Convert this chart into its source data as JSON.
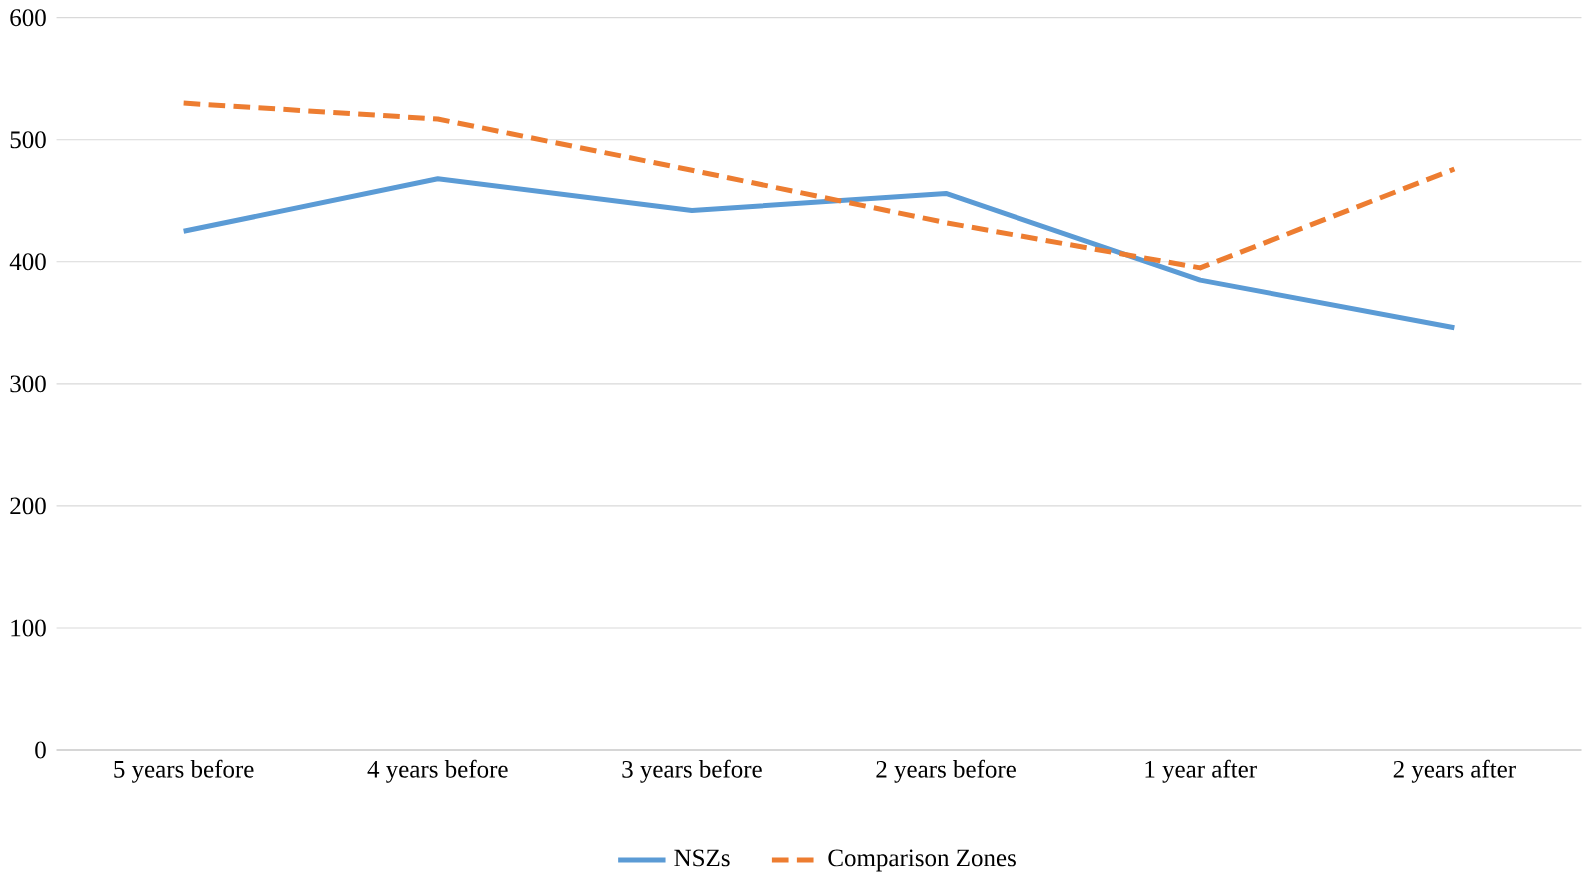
{
  "chart_data": {
    "type": "line",
    "categories": [
      "5 years before",
      "4 years before",
      "3 years before",
      "2 years before",
      "1 year after",
      "2 years after"
    ],
    "series": [
      {
        "name": "NSZs",
        "color": "#5b9bd5",
        "values": [
          425,
          468,
          442,
          456,
          385,
          346
        ],
        "line_style": "solid"
      },
      {
        "name": "Comparison Zones",
        "color": "#ed7d31",
        "values": [
          530,
          517,
          475,
          432,
          395,
          476
        ],
        "line_style": "dashed"
      }
    ],
    "ylim": [
      0,
      600
    ],
    "yticks": [
      0,
      100,
      200,
      300,
      400,
      500,
      600
    ],
    "grid": "y",
    "legend": "bottom",
    "marker": "none"
  }
}
